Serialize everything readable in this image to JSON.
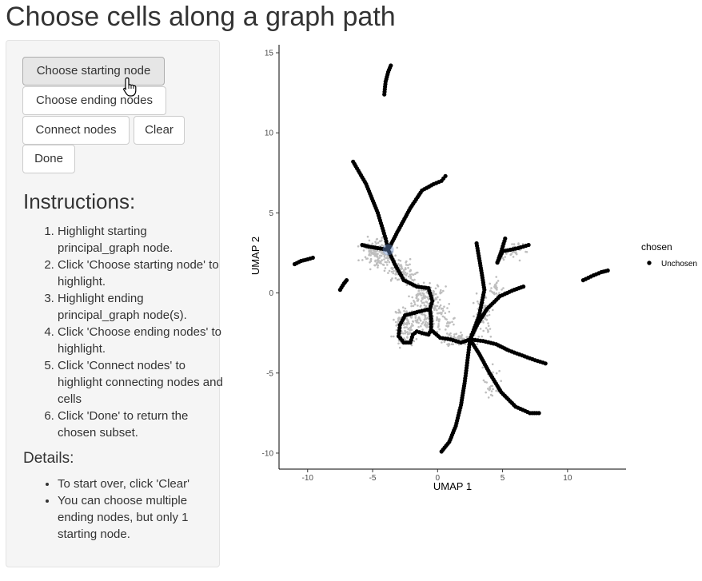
{
  "page": {
    "title": "Choose cells along a graph path"
  },
  "controls": {
    "choose_start_label": "Choose starting node",
    "choose_end_label": "Choose ending nodes",
    "connect_label": "Connect nodes",
    "clear_label": "Clear",
    "done_label": "Done"
  },
  "instructions": {
    "heading": "Instructions:",
    "steps": [
      "Highlight starting principal_graph node.",
      "Click 'Choose starting node' to highlight.",
      "Highlight ending principal_graph node(s).",
      "Click 'Choose ending nodes' to highlight.",
      "Click 'Connect nodes' to highlight connecting nodes and cells",
      "Click 'Done' to return the chosen subset."
    ]
  },
  "details": {
    "heading": "Details:",
    "items": [
      "To start over, click 'Clear'",
      "You can choose multiple ending nodes, but only 1 starting node."
    ]
  },
  "chart_data": {
    "type": "scatter",
    "xlabel": "UMAP 1",
    "ylabel": "UMAP 2",
    "xlim": [
      -12.2,
      14.5
    ],
    "ylim": [
      -11.0,
      15.5
    ],
    "xticks": [
      -10,
      -5,
      0,
      5,
      10
    ],
    "yticks": [
      -10,
      -5,
      0,
      5,
      10,
      15
    ],
    "grid": false,
    "legend": {
      "title": "chosen",
      "entries": [
        "Unchosen"
      ],
      "position": "right"
    },
    "colors": {
      "node": "#000000",
      "cells": "#bebebe",
      "highlight": "#6b8fc8"
    },
    "highlighted_node": [
      -3.8,
      2.7
    ],
    "cell_clusters": [
      {
        "center": [
          -4.5,
          2.5
        ],
        "spread": [
          1.1,
          0.8
        ],
        "count": 160
      },
      {
        "center": [
          -2.7,
          1.3
        ],
        "spread": [
          1.0,
          0.6
        ],
        "count": 90
      },
      {
        "center": [
          -1.0,
          -0.2
        ],
        "spread": [
          1.2,
          0.7
        ],
        "count": 100
      },
      {
        "center": [
          -2.4,
          -2.0
        ],
        "spread": [
          0.9,
          1.1
        ],
        "count": 130
      },
      {
        "center": [
          -0.3,
          -1.5
        ],
        "spread": [
          1.3,
          0.9
        ],
        "count": 120
      },
      {
        "center": [
          1.7,
          -2.9
        ],
        "spread": [
          1.3,
          0.4
        ],
        "count": 80
      },
      {
        "center": [
          3.5,
          -1.4
        ],
        "spread": [
          0.7,
          1.1
        ],
        "count": 70
      },
      {
        "center": [
          4.5,
          0.2
        ],
        "spread": [
          0.6,
          0.6
        ],
        "count": 30
      },
      {
        "center": [
          6.0,
          2.6
        ],
        "spread": [
          0.8,
          0.5
        ],
        "count": 40
      },
      {
        "center": [
          4.2,
          -5.5
        ],
        "spread": [
          0.6,
          0.9
        ],
        "count": 30
      }
    ],
    "branches": [
      {
        "name": "top-island",
        "points": [
          [
            -4.1,
            12.4
          ],
          [
            -4.0,
            13.2
          ],
          [
            -3.8,
            13.8
          ],
          [
            -3.6,
            14.2
          ]
        ]
      },
      {
        "name": "left-far",
        "points": [
          [
            -11.0,
            1.8
          ],
          [
            -10.5,
            2.0
          ],
          [
            -10.0,
            2.1
          ],
          [
            -9.6,
            2.2
          ]
        ]
      },
      {
        "name": "left-short",
        "points": [
          [
            -7.5,
            0.2
          ],
          [
            -7.2,
            0.6
          ],
          [
            -7.0,
            0.8
          ]
        ]
      },
      {
        "name": "right-far",
        "points": [
          [
            11.2,
            0.8
          ],
          [
            12.0,
            1.1
          ],
          [
            12.6,
            1.3
          ],
          [
            13.1,
            1.4
          ]
        ]
      },
      {
        "name": "upper-left-arm",
        "points": [
          [
            -6.5,
            8.2
          ],
          [
            -5.5,
            6.8
          ],
          [
            -4.6,
            5.0
          ],
          [
            -4.0,
            3.4
          ],
          [
            -3.8,
            2.7
          ]
        ]
      },
      {
        "name": "upper-arm",
        "points": [
          [
            -3.8,
            2.7
          ],
          [
            -3.1,
            3.8
          ],
          [
            -2.1,
            5.3
          ],
          [
            -1.2,
            6.4
          ],
          [
            -0.3,
            6.8
          ],
          [
            0.3,
            7.0
          ],
          [
            0.6,
            7.3
          ]
        ]
      },
      {
        "name": "left-loop",
        "points": [
          [
            -3.8,
            2.7
          ],
          [
            -4.6,
            2.8
          ],
          [
            -5.3,
            2.9
          ],
          [
            -5.8,
            3.0
          ]
        ]
      },
      {
        "name": "center-to-loop",
        "points": [
          [
            -3.8,
            2.7
          ],
          [
            -3.3,
            1.8
          ],
          [
            -2.6,
            0.8
          ],
          [
            -1.6,
            0.4
          ],
          [
            -0.7,
            0.3
          ],
          [
            -0.4,
            -0.5
          ],
          [
            -0.6,
            -1.0
          ],
          [
            -1.6,
            -1.2
          ],
          [
            -2.5,
            -1.4
          ]
        ]
      },
      {
        "name": "bottom-loop",
        "points": [
          [
            -2.5,
            -1.4
          ],
          [
            -2.9,
            -2.0
          ],
          [
            -3.0,
            -2.7
          ],
          [
            -2.6,
            -3.1
          ],
          [
            -2.1,
            -3.1
          ],
          [
            -1.9,
            -2.6
          ],
          [
            -1.6,
            -2.4
          ],
          [
            -1.2,
            -2.5
          ],
          [
            -0.7,
            -2.6
          ],
          [
            -0.5,
            -2.3
          ],
          [
            -0.5,
            -1.6
          ],
          [
            -0.6,
            -1.0
          ]
        ]
      },
      {
        "name": "loop-to-junction",
        "points": [
          [
            -0.5,
            -2.3
          ],
          [
            0.2,
            -2.8
          ],
          [
            1.0,
            -2.9
          ],
          [
            1.8,
            -3.1
          ],
          [
            2.5,
            -2.9
          ]
        ]
      },
      {
        "name": "junction-down-left",
        "points": [
          [
            2.5,
            -2.9
          ],
          [
            2.3,
            -4.2
          ],
          [
            2.1,
            -5.5
          ],
          [
            1.8,
            -7.0
          ],
          [
            1.4,
            -8.3
          ],
          [
            0.9,
            -9.3
          ],
          [
            0.3,
            -9.9
          ]
        ]
      },
      {
        "name": "junction-down-right",
        "points": [
          [
            2.5,
            -2.9
          ],
          [
            3.2,
            -3.8
          ],
          [
            4.0,
            -5.0
          ],
          [
            4.9,
            -6.2
          ],
          [
            6.0,
            -7.1
          ],
          [
            7.1,
            -7.5
          ],
          [
            7.8,
            -7.5
          ]
        ]
      },
      {
        "name": "junction-right",
        "points": [
          [
            2.5,
            -2.9
          ],
          [
            3.5,
            -3.0
          ],
          [
            4.5,
            -3.2
          ],
          [
            5.5,
            -3.6
          ],
          [
            6.5,
            -3.9
          ],
          [
            7.5,
            -4.2
          ],
          [
            8.3,
            -4.4
          ]
        ]
      },
      {
        "name": "junction-up",
        "points": [
          [
            2.5,
            -2.9
          ],
          [
            3.2,
            -1.4
          ],
          [
            3.6,
            0.2
          ],
          [
            3.3,
            1.7
          ],
          [
            3.0,
            3.1
          ]
        ]
      },
      {
        "name": "junction-upper-right",
        "points": [
          [
            2.5,
            -2.9
          ],
          [
            3.1,
            -1.9
          ],
          [
            3.8,
            -1.0
          ],
          [
            4.8,
            -0.2
          ],
          [
            5.9,
            0.2
          ],
          [
            6.6,
            0.4
          ]
        ]
      },
      {
        "name": "right-fork-a",
        "points": [
          [
            4.6,
            1.9
          ],
          [
            5.0,
            2.6
          ],
          [
            5.6,
            2.7
          ],
          [
            6.2,
            2.8
          ],
          [
            7.0,
            3.0
          ]
        ]
      },
      {
        "name": "right-fork-b",
        "points": [
          [
            4.6,
            1.9
          ],
          [
            4.9,
            2.6
          ],
          [
            5.2,
            3.4
          ]
        ]
      }
    ]
  }
}
